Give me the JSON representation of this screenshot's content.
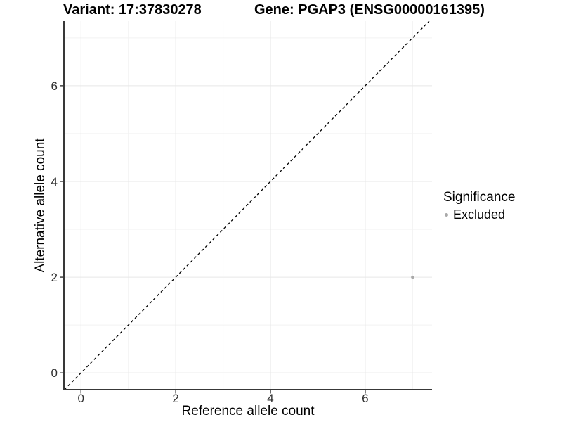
{
  "chart_data": {
    "type": "scatter",
    "titles": [
      "Variant: 17:37830278",
      "Gene: PGAP3 (ENSG00000161395)"
    ],
    "xlabel": "Reference allele count",
    "ylabel": "Alternative allele count",
    "xlim": [
      -0.36,
      7.41
    ],
    "ylim": [
      -0.35,
      7.35
    ],
    "xticks": [
      0,
      2,
      4,
      6
    ],
    "yticks": [
      0,
      2,
      4,
      6
    ],
    "grid": {
      "show": true,
      "minor_x": [
        1,
        3,
        5,
        7
      ],
      "minor_y": [
        1,
        3,
        5,
        7
      ]
    },
    "identity_line": {
      "shown": true,
      "style": "dashed",
      "equation": "y = x"
    },
    "points": [
      {
        "x": 7,
        "y": 2,
        "significance": "Excluded"
      }
    ],
    "legend": {
      "title": "Significance",
      "position": "right",
      "entries": [
        {
          "label": "Excluded",
          "color": "#a9a9a9"
        }
      ]
    },
    "colors": {
      "point": "#a9a9a9",
      "grid_major": "#e7e7e7",
      "grid_minor": "#f2f2f2",
      "axis_line": "#383838",
      "tick_mark": "#333333",
      "identity_line": "#000000"
    }
  }
}
